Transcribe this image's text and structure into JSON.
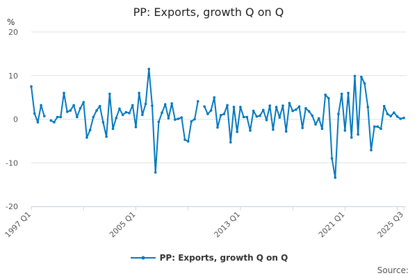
{
  "chart_data": {
    "type": "line",
    "title": "PP: Exports, growth Q on Q",
    "ylabel": "%",
    "xlabel": "",
    "ylim": [
      -20,
      20
    ],
    "yticks": [
      -20,
      -10,
      0,
      10,
      20
    ],
    "xtick_labels": [
      "1997 Q1",
      "2005 Q1",
      "2013 Q1",
      "2021 Q1",
      "2025 Q3"
    ],
    "grid": true,
    "legend_position": "bottom",
    "color": "#0077c0",
    "series": [
      {
        "name": "PP: Exports, growth Q on Q",
        "values": [
          7.5,
          1.3,
          -0.7,
          3.2,
          0.7,
          null,
          -0.3,
          -0.7,
          0.5,
          0.5,
          6.0,
          1.7,
          2.0,
          3.2,
          0.5,
          2.5,
          3.9,
          -4.2,
          -2.5,
          0.5,
          2.0,
          3.0,
          -0.7,
          -4.0,
          5.8,
          -2.2,
          0.3,
          2.4,
          1.0,
          1.6,
          1.4,
          3.2,
          -1.8,
          6.0,
          1.0,
          3.5,
          11.5,
          3.1,
          -12.2,
          -0.6,
          1.5,
          3.4,
          0.2,
          3.6,
          -0.1,
          0.1,
          0.4,
          -4.7,
          -5.1,
          -0.5,
          0.0,
          4.1,
          null,
          2.9,
          1.2,
          2.0,
          5.0,
          -1.9,
          0.9,
          1.2,
          3.2,
          -5.3,
          2.8,
          -2.9,
          2.8,
          0.5,
          0.5,
          -2.6,
          1.9,
          0.6,
          0.8,
          2.1,
          -0.2,
          3.1,
          -2.4,
          2.8,
          0.4,
          3.1,
          -2.8,
          3.7,
          1.9,
          2.2,
          2.9,
          -2.0,
          2.5,
          1.8,
          0.8,
          -1.2,
          0.2,
          -2.2,
          5.6,
          4.8,
          -9.0,
          -13.4,
          1.2,
          5.8,
          -2.6,
          6.0,
          -4.2,
          9.9,
          -3.5,
          9.7,
          8.2,
          2.8,
          -7.1,
          -1.7,
          -1.7,
          -2.2,
          3.0,
          1.2,
          0.7,
          1.5,
          0.6,
          0.1,
          0.3
        ]
      }
    ]
  },
  "source_label": "Source:"
}
